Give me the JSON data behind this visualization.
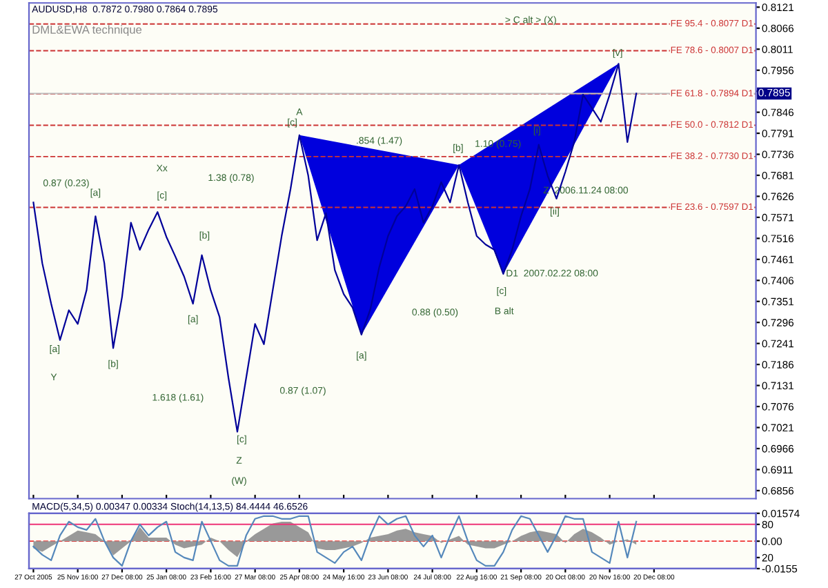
{
  "chart_data": [
    {
      "type": "line",
      "title": "AUDUSD,H8  0.7872 0.7980 0.7864 0.7895",
      "subtitle": "DML&EWA technique",
      "series": [
        {
          "color": "#000099",
          "values": [
            0.761,
            0.7451,
            0.7345,
            0.725,
            0.7328,
            0.7292,
            0.7381,
            0.7574,
            0.7451,
            0.7229,
            0.7363,
            0.7557,
            0.7486,
            0.7539,
            0.7585,
            0.752,
            0.7469,
            0.7416,
            0.7345,
            0.7472,
            0.738,
            0.731,
            0.7151,
            0.701,
            0.7151,
            0.7292,
            0.7239,
            0.7381,
            0.7522,
            0.7645,
            0.7786,
            0.768,
            0.7511,
            0.7582,
            0.7433,
            0.737,
            0.7335,
            0.7264,
            0.733,
            0.744,
            0.7522,
            0.7574,
            0.76,
            0.7645,
            0.7557,
            0.76,
            0.7663,
            0.761,
            0.7708,
            0.761,
            0.7522,
            0.75,
            0.7486,
            0.7423,
            0.7486,
            0.7574,
            0.7645,
            0.7761,
            0.768,
            0.762,
            0.769,
            0.7768,
            0.7892,
            0.7857,
            0.7821,
            0.7892,
            0.7973,
            0.7768,
            0.7895,
            null,
            null,
            null,
            null,
            null,
            null,
            null,
            null,
            null,
            null,
            null,
            null,
            null
          ]
        }
      ],
      "ylim": [
        0.6835,
        0.8132
      ],
      "yticks": [
        0.6856,
        0.6911,
        0.6966,
        0.7021,
        0.7076,
        0.7131,
        0.7186,
        0.7241,
        0.7296,
        0.7351,
        0.7406,
        0.7461,
        0.7516,
        0.7571,
        0.7626,
        0.7681,
        0.7736,
        0.7791,
        0.7846,
        {
          "value": 0.7901,
          "label": null
        },
        0.7956,
        0.8011,
        0.8066,
        0.8121
      ],
      "tick_labels": "y",
      "ref_lines": [
        {
          "axis": "y",
          "value": 0.8077,
          "label": "FE 95.4 - 0.8077 D1",
          "color": "#cc3333",
          "line_style": "dashed"
        },
        {
          "axis": "y",
          "value": 0.8007,
          "label": "FE 78.6 - 0.8007 D1",
          "color": "#cc3333",
          "line_style": "dashed"
        },
        {
          "axis": "y",
          "value": 0.7894,
          "label": "FE 61.8 - 0.7894 D1",
          "color": "#cc3333",
          "line_style": "dashed"
        },
        {
          "axis": "y",
          "value": 0.7812,
          "label": "FE 50.0 - 0.7812 D1",
          "color": "#cc3333",
          "line_style": "dashed"
        },
        {
          "axis": "y",
          "value": 0.773,
          "label": "FE 38.2 - 0.7730 D1",
          "color": "#cc3333",
          "line_style": "dashed"
        },
        {
          "axis": "y",
          "value": 0.7597,
          "label": "FE 23.6 - 0.7597 D1",
          "color": "#cc3333",
          "line_style": "dashed"
        },
        {
          "axis": "y",
          "value": 0.7895,
          "label": "0.7895",
          "color": "#c0c0c0",
          "line_style": "solid"
        }
      ],
      "annotations": [
        "A",
        "[c]",
        "Xx",
        "[a]",
        "[c]",
        "0.87 (0.23)",
        "1.38 (0.78)",
        "[b]",
        "[a]",
        "Y",
        "[b]",
        "[a]",
        "1.618 (1.61)",
        "[c]",
        "Z",
        "(W)",
        "0.87 (1.07)",
        "[a]",
        "0.88 (0.50)",
        "B alt",
        "[c]",
        "D1  2007.02.22 08:00",
        "Z  2006.11.24 08:00",
        "[ii]",
        "[i]",
        "[v]",
        "> C alt > (X)",
        "[b]",
        ".854 (1.47)",
        "1.10 (0.75)"
      ]
    },
    {
      "type": "area",
      "title": "MACD(5,34,5) 0.00347 0.00334 Stoch(14,13,5) 84.4444 46.6526",
      "categories": [
        "27 Oct 2005",
        null,
        null,
        null,
        null,
        "25 Nov 16:00",
        null,
        null,
        null,
        null,
        "27 Dec 08:00",
        null,
        null,
        null,
        null,
        "25 Jan 08:00",
        null,
        null,
        null,
        null,
        "23 Feb 16:00",
        null,
        null,
        null,
        null,
        "27 Mar 08:00",
        null,
        null,
        null,
        null,
        "25 Apr 08:00",
        null,
        null,
        null,
        null,
        "24 May 16:00",
        null,
        null,
        null,
        null,
        "23 Jun 08:00",
        null,
        null,
        null,
        null,
        "24 Jul 08:00",
        null,
        null,
        null,
        null,
        "22 Aug 16:00",
        null,
        null,
        null,
        null,
        "21 Sep 08:00",
        null,
        null,
        null,
        null,
        "20 Oct 08:00",
        null,
        null,
        null,
        null,
        "20 Nov 16:00",
        null,
        null,
        null,
        null,
        "20 Dec 08:00",
        null,
        null,
        null,
        null,
        null,
        null,
        null,
        null,
        null,
        null,
        null
      ],
      "series": [
        {
          "color": "#999999",
          "values": [
            -0.004,
            -0.006,
            -0.003,
            0.0,
            0.003,
            0.006,
            0.005,
            0.004,
            0.0,
            -0.008,
            -0.004,
            0.0,
            0.008,
            0.002,
            0.002,
            0.002,
            -0.002,
            -0.004,
            -0.003,
            -0.002,
            0.002,
            0.0,
            -0.005,
            -0.009,
            0.0,
            0.004,
            0.007,
            0.01,
            0.011,
            0.011,
            0.008,
            0.005,
            -0.004,
            -0.005,
            -0.005,
            -0.004,
            -0.003,
            -0.001,
            0.002,
            0.003,
            0.004,
            0.006,
            0.007,
            0.005,
            0.004,
            0.003,
            -0.001,
            0.001,
            0.003,
            -0.002,
            -0.003,
            -0.004,
            -0.004,
            -0.002,
            0.0,
            0.003,
            0.005,
            0.006,
            0.005,
            0.004,
            -0.001,
            0.004,
            0.007,
            0.005,
            0.002,
            -0.002,
            0.0,
            0.001,
            -0.002,
            null,
            null,
            null,
            null,
            null,
            null,
            null,
            null,
            null,
            null,
            null,
            null,
            null
          ]
        },
        {
          "type": "line",
          "axis": "y2",
          "color": "#5588bb",
          "values": [
            40,
            25,
            15,
            60,
            85,
            75,
            70,
            90,
            50,
            20,
            5,
            50,
            80,
            60,
            75,
            85,
            30,
            20,
            15,
            85,
            50,
            15,
            5,
            5,
            60,
            90,
            95,
            95,
            90,
            90,
            95,
            95,
            30,
            20,
            10,
            30,
            40,
            15,
            60,
            95,
            80,
            90,
            95,
            60,
            40,
            60,
            20,
            60,
            95,
            50,
            15,
            5,
            5,
            30,
            70,
            95,
            90,
            60,
            30,
            60,
            95,
            90,
            90,
            30,
            20,
            10,
            85,
            20,
            85,
            null,
            null,
            null,
            null,
            null,
            null,
            null,
            null,
            null,
            null,
            null,
            null,
            null
          ]
        }
      ],
      "ylim": [
        -0.0155,
        0.01574
      ],
      "y2lim": [
        0,
        100
      ],
      "yticks": [
        -0.0155,
        {
          "value": 0,
          "label": "0.00"
        },
        0.01574
      ],
      "y2ticks": [
        20,
        80
      ],
      "ref_lines": [
        {
          "axis": "y",
          "value": 0,
          "color": "#ee3333",
          "line_style": "dashed"
        },
        {
          "axis": "y2",
          "value": 80,
          "color": "#ee3377",
          "line_style": "solid"
        }
      ]
    }
  ]
}
